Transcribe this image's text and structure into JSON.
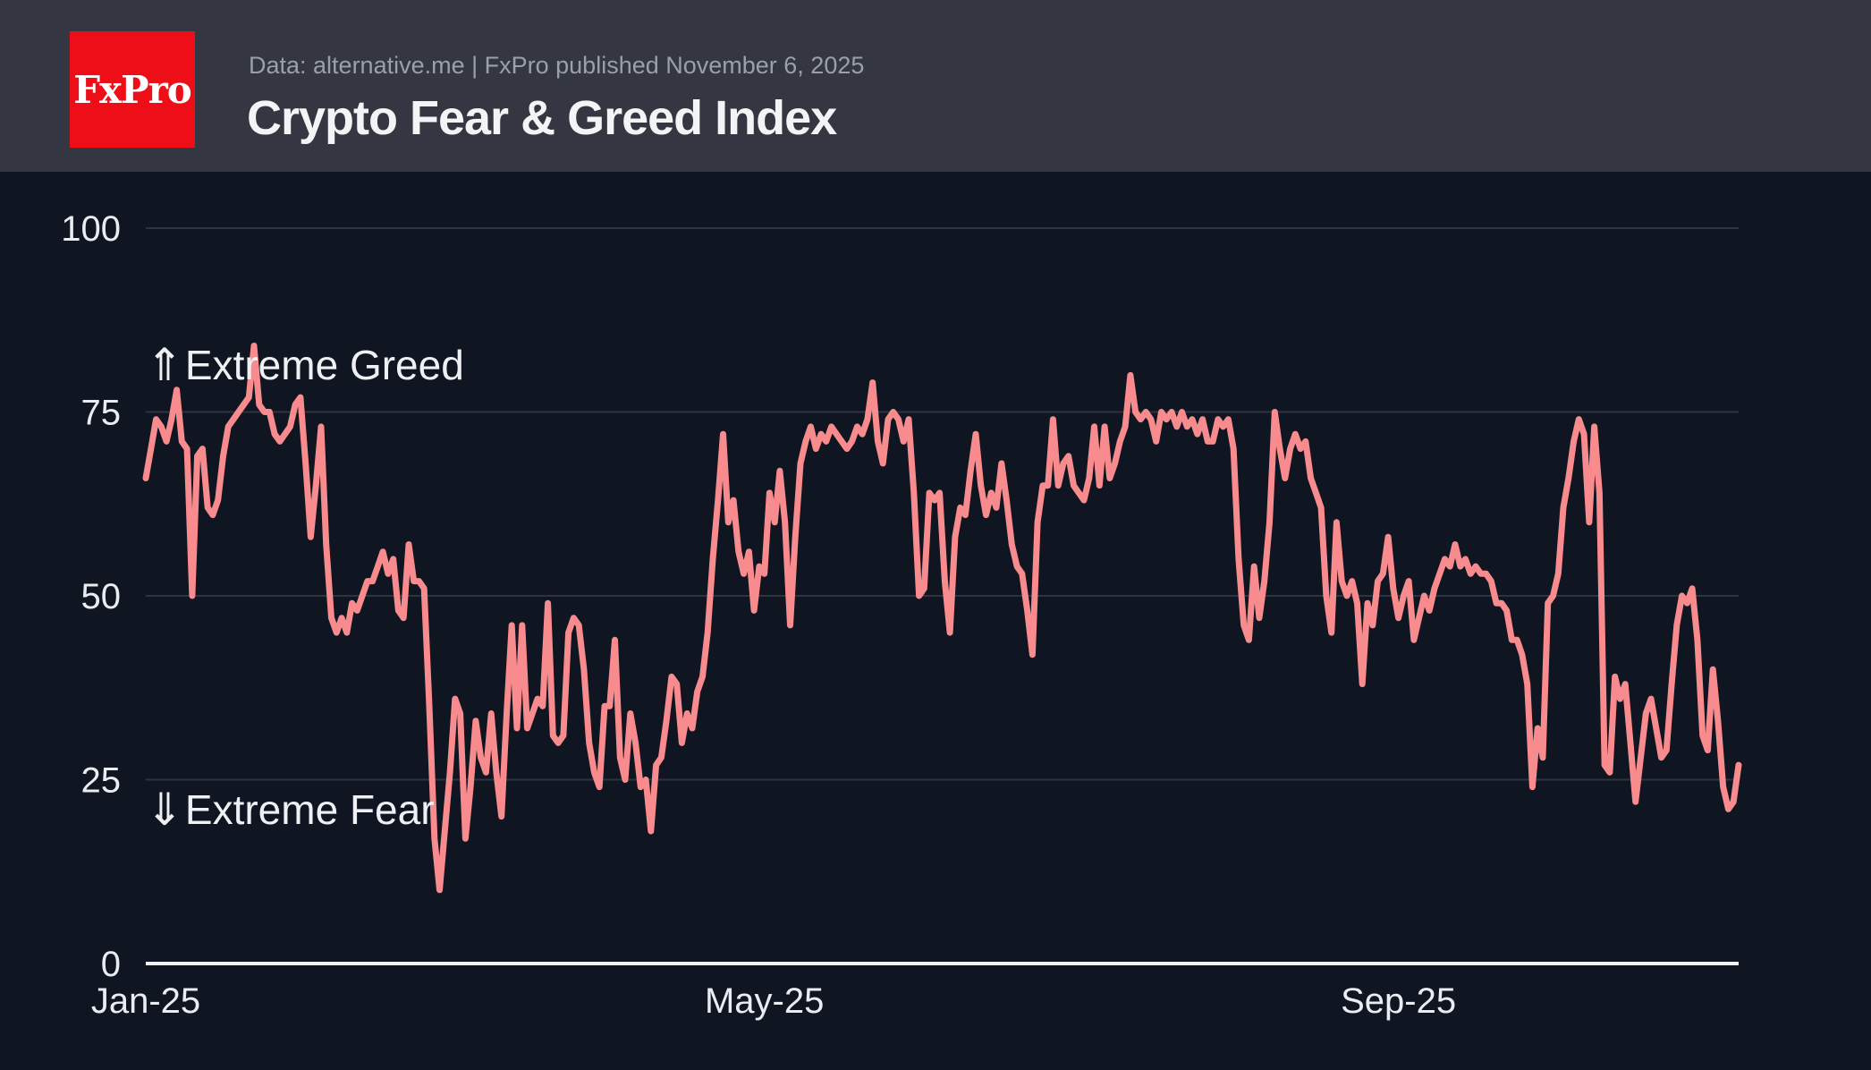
{
  "header": {
    "logo_text": "FxPro",
    "source_line": "Data: alternative.me | FxPro published November 6, 2025",
    "title": "Crypto Fear & Greed Index"
  },
  "annotations": {
    "greed": {
      "arrow": "⇑",
      "label": "Extreme Greed"
    },
    "fear": {
      "arrow": "⇓",
      "label": "Extreme Fear"
    }
  },
  "colors": {
    "header_bg": "#343742",
    "chart_bg": "#0f1521",
    "logo_red": "#ed0e18",
    "line": "#f78b8e",
    "subtitle_gray": "#9aa0a9",
    "gridline": "rgba(255,255,255,0.13)",
    "axis_white": "#f2f3f5"
  },
  "chart_data": {
    "type": "line",
    "title": "Crypto Fear & Greed Index",
    "xlabel": "",
    "ylabel": "",
    "ylim": [
      0,
      100
    ],
    "y_ticks": [
      0,
      25,
      50,
      75,
      100
    ],
    "grid": "horizontal",
    "legend": "none",
    "x_start_date": "2025-01-01",
    "x_end_date": "2025-11-06",
    "x_cadence": "daily",
    "x_tick_labels": [
      "Jan-25",
      "May-25",
      "Sep-25"
    ],
    "x_tick_day_offsets": [
      0,
      120,
      243
    ],
    "annotations": [
      {
        "text": "⇑Extreme Greed",
        "y": 81
      },
      {
        "text": "⇓Extreme Fear",
        "y": 21
      }
    ],
    "series": [
      {
        "name": "Crypto Fear & Greed Index",
        "values": [
          66,
          70,
          74,
          73,
          71,
          74,
          78,
          71,
          70,
          50,
          69,
          70,
          62,
          61,
          63,
          69,
          73,
          74,
          75,
          76,
          77,
          84,
          76,
          75,
          75,
          72,
          71,
          72,
          73,
          76,
          77,
          68,
          58,
          65,
          73,
          57,
          47,
          45,
          47,
          45,
          49,
          48,
          50,
          52,
          52,
          54,
          56,
          53,
          55,
          48,
          47,
          57,
          52,
          52,
          51,
          35,
          17,
          10,
          18,
          26,
          36,
          34,
          17,
          24,
          33,
          28,
          26,
          34,
          26,
          20,
          34,
          46,
          32,
          46,
          32,
          34,
          36,
          35,
          49,
          31,
          30,
          31,
          45,
          47,
          46,
          40,
          30,
          26,
          24,
          35,
          35,
          44,
          28,
          25,
          34,
          30,
          24,
          25,
          18,
          27,
          28,
          33,
          39,
          38,
          30,
          34,
          32,
          37,
          39,
          45,
          55,
          63,
          72,
          60,
          63,
          56,
          53,
          56,
          48,
          54,
          53,
          64,
          60,
          67,
          60,
          46,
          58,
          68,
          71,
          73,
          70,
          72,
          71,
          73,
          72,
          71,
          70,
          71,
          73,
          72,
          74,
          79,
          71,
          68,
          74,
          75,
          74,
          71,
          74,
          64,
          50,
          51,
          64,
          63,
          64,
          52,
          45,
          58,
          62,
          61,
          67,
          72,
          65,
          61,
          64,
          62,
          68,
          63,
          57,
          54,
          53,
          48,
          42,
          60,
          65,
          65,
          74,
          65,
          68,
          69,
          65,
          64,
          63,
          66,
          73,
          65,
          73,
          66,
          68,
          71,
          73,
          80,
          75,
          74,
          75,
          74,
          71,
          75,
          74,
          75,
          73,
          75,
          73,
          74,
          72,
          74,
          71,
          71,
          74,
          73,
          74,
          70,
          55,
          46,
          44,
          54,
          47,
          52,
          60,
          75,
          70,
          66,
          70,
          72,
          70,
          71,
          66,
          64,
          62,
          50,
          45,
          60,
          52,
          50,
          52,
          49,
          38,
          49,
          46,
          52,
          53,
          58,
          51,
          47,
          50,
          52,
          44,
          47,
          50,
          48,
          51,
          53,
          55,
          54,
          57,
          54,
          55,
          53,
          54,
          53,
          53,
          52,
          49,
          49,
          48,
          44,
          44,
          42,
          38,
          24,
          32,
          28,
          49,
          50,
          53,
          62,
          66,
          71,
          74,
          72,
          60,
          73,
          64,
          27,
          26,
          39,
          36,
          38,
          30,
          22,
          28,
          34,
          36,
          32,
          28,
          29,
          38,
          46,
          50,
          49,
          51,
          44,
          31,
          29,
          40,
          33,
          24,
          21,
          22,
          27
        ]
      }
    ]
  }
}
